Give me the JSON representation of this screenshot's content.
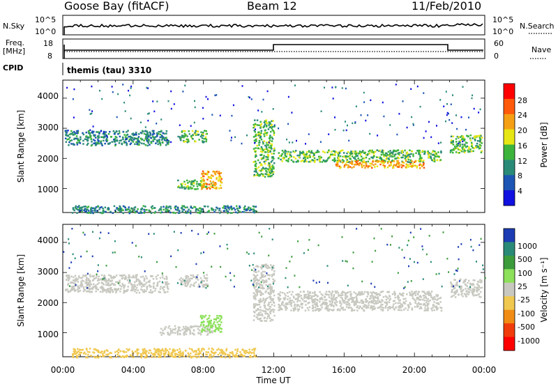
{
  "header": {
    "station": "Goose Bay (fitACF)",
    "beam": "Beam 12",
    "date": "11/Feb/2010"
  },
  "noise_panel": {
    "left_label": "N.Sky",
    "right_label": "N.Search",
    "tick_top": "10^5",
    "tick_bottom": "10^0"
  },
  "freq_panel": {
    "left_label_1": "Freq.",
    "left_label_2": "[MHz]",
    "left_ticks": [
      "18",
      "8"
    ],
    "right_label": "Nave",
    "right_ticks": [
      "60",
      "0"
    ]
  },
  "cpid_panel": {
    "label": "CPID",
    "value": "themis (tau) 3310"
  },
  "xaxis": {
    "label": "Time UT",
    "ticks": [
      "00:00",
      "04:00",
      "08:00",
      "12:00",
      "16:00",
      "20:00",
      "00:00"
    ]
  },
  "power_panel": {
    "ylabel": "Slant Range [km]",
    "yticks": [
      "1000",
      "2000",
      "3000",
      "4000"
    ],
    "colorbar_label": "Power [dB]",
    "colorbar_ticks": [
      "4",
      "8",
      "12",
      "16",
      "20",
      "24",
      "28"
    ],
    "colors": [
      "#1010e0",
      "#1c55b4",
      "#2a8a78",
      "#3cb43c",
      "#e6e614",
      "#f5a014",
      "#ff5a0a",
      "#ff0000"
    ]
  },
  "velocity_panel": {
    "ylabel": "Slant Range [km]",
    "yticks": [
      "1000",
      "2000",
      "3000",
      "4000"
    ],
    "colorbar_label": "Velocity [m s⁻¹]",
    "colorbar_ticks": [
      "1000",
      "500",
      "100",
      "25",
      "-25",
      "-100",
      "-500",
      "-1000"
    ],
    "colors": [
      "#1c3cb4",
      "#2a8a78",
      "#3c9c3c",
      "#8ce05a",
      "#c8c8c0",
      "#f0c850",
      "#f08c14",
      "#f03c0a",
      "#ff0000"
    ]
  },
  "chart_data": {
    "type": "heatmap",
    "x_units": "hours UT",
    "xlim": [
      0,
      24
    ],
    "ylim": [
      200,
      4600
    ],
    "power_regions": [
      {
        "t0": 0.1,
        "t1": 6.0,
        "r0": 2450,
        "r1": 2950,
        "level": 2
      },
      {
        "t0": 6.6,
        "t1": 8.2,
        "r0": 2550,
        "r1": 2950,
        "level": 3
      },
      {
        "t0": 6.5,
        "t1": 8.5,
        "r0": 1000,
        "r1": 1300,
        "level": 3
      },
      {
        "t0": 7.8,
        "t1": 9.0,
        "r0": 1000,
        "r1": 1600,
        "level": 5
      },
      {
        "t0": 10.8,
        "t1": 12.0,
        "r0": 1400,
        "r1": 3300,
        "level": 3
      },
      {
        "t0": 12.2,
        "t1": 21.5,
        "r0": 1900,
        "r1": 2300,
        "level": 3
      },
      {
        "t0": 15.5,
        "t1": 20.5,
        "r0": 1700,
        "r1": 1950,
        "level": 5
      },
      {
        "t0": 22.0,
        "t1": 23.8,
        "r0": 2200,
        "r1": 2800,
        "level": 3
      },
      {
        "t0": 0.5,
        "t1": 11.0,
        "r0": 200,
        "r1": 450,
        "level": 2
      }
    ],
    "velocity_regions": [
      {
        "t0": 0.1,
        "t1": 6.0,
        "r0": 2350,
        "r1": 2950,
        "level": 4
      },
      {
        "t0": 6.6,
        "t1": 8.2,
        "r0": 2550,
        "r1": 2950,
        "level": 4
      },
      {
        "t0": 5.5,
        "t1": 8.5,
        "r0": 950,
        "r1": 1250,
        "level": 4
      },
      {
        "t0": 7.8,
        "t1": 9.0,
        "r0": 1050,
        "r1": 1600,
        "level": 3
      },
      {
        "t0": 10.8,
        "t1": 12.0,
        "r0": 1400,
        "r1": 3300,
        "level": 4
      },
      {
        "t0": 12.2,
        "t1": 21.5,
        "r0": 1750,
        "r1": 2400,
        "level": 4
      },
      {
        "t0": 22.0,
        "t1": 23.8,
        "r0": 2200,
        "r1": 2800,
        "level": 4
      },
      {
        "t0": 0.5,
        "t1": 11.0,
        "r0": 200,
        "r1": 500,
        "level": 5
      }
    ]
  }
}
